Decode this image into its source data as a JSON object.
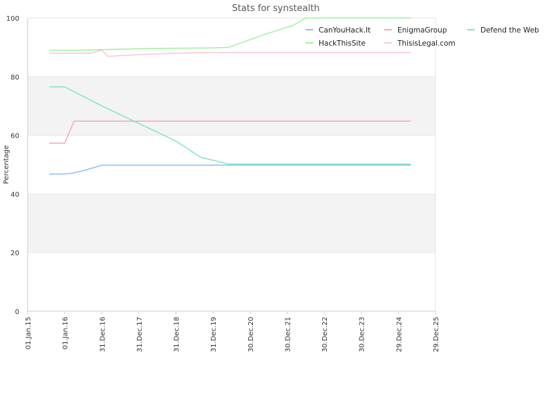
{
  "chart_data": {
    "type": "line",
    "title": "Stats for synstealth",
    "xlabel": "",
    "ylabel": "Percentage",
    "ylim": [
      0,
      100
    ],
    "yticks": [
      0,
      20,
      40,
      60,
      80,
      100
    ],
    "x_tick_labels": [
      "01.Jan.15",
      "01.Jan.16",
      "31.Dec.16",
      "31.Dec.17",
      "31.Dec.18",
      "31.Dec.19",
      "30.Dec.20",
      "30.Dec.21",
      "30.Dec.22",
      "30.Dec.23",
      "29.Dec.24",
      "29.Dec.25"
    ],
    "xlim": [
      "2015-01-01",
      "2025-12-29"
    ],
    "grid": {
      "horizontal": true,
      "alternating_bands": true,
      "band_color": "#f3f3f3"
    },
    "legend_position": "top-right",
    "series": [
      {
        "name": "CanYouHack.It",
        "color": "#8fbff3",
        "x": [
          "2015-08-01",
          "2016-01-01",
          "2016-04-01",
          "2016-08-01",
          "2017-01-01",
          "2018-01-01",
          "2019-01-01",
          "2020-01-01",
          "2021-01-01",
          "2022-01-01",
          "2023-01-01",
          "2024-01-01",
          "2025-05-01"
        ],
        "values": [
          46.8,
          46.8,
          47.2,
          48.2,
          49.8,
          49.8,
          49.8,
          49.8,
          49.8,
          49.8,
          49.8,
          49.8,
          49.8
        ]
      },
      {
        "name": "EnigmaGroup",
        "color": "#f4a6bd",
        "x": [
          "2015-08-01",
          "2016-01-01",
          "2016-04-01",
          "2017-01-01",
          "2018-01-01",
          "2019-01-01",
          "2020-01-01",
          "2021-01-01",
          "2022-01-01",
          "2023-01-01",
          "2024-01-01",
          "2025-05-01"
        ],
        "values": [
          57.3,
          57.3,
          64.8,
          64.8,
          64.8,
          64.8,
          64.8,
          64.8,
          64.8,
          64.8,
          64.8,
          64.8
        ]
      },
      {
        "name": "Defend the Web",
        "color": "#7fe8c0",
        "x": [
          "2015-08-01",
          "2016-01-01",
          "2017-01-01",
          "2018-01-01",
          "2019-01-01",
          "2019-09-01",
          "2020-06-01",
          "2021-01-01",
          "2022-01-01",
          "2023-01-01",
          "2024-01-01",
          "2025-05-01"
        ],
        "values": [
          76.5,
          76.5,
          70.0,
          64.0,
          58.0,
          52.5,
          50.2,
          50.2,
          50.2,
          50.2,
          50.2,
          50.2
        ]
      },
      {
        "name": "HackThisSite",
        "color": "#9df29d",
        "x": [
          "2015-08-01",
          "2016-06-01",
          "2017-01-01",
          "2018-01-01",
          "2019-01-01",
          "2020-01-01",
          "2020-06-01",
          "2021-06-01",
          "2022-03-01",
          "2022-07-01",
          "2023-01-01",
          "2024-01-01",
          "2025-05-01"
        ],
        "values": [
          89.0,
          89.0,
          89.2,
          89.5,
          89.7,
          89.8,
          90.0,
          94.5,
          97.5,
          100.0,
          100.0,
          100.0,
          100.0
        ]
      },
      {
        "name": "ThisisLegal.com",
        "color": "#f5c8d0",
        "x": [
          "2015-08-01",
          "2016-09-01",
          "2017-01-01",
          "2017-03-01",
          "2018-01-01",
          "2019-01-01",
          "2020-01-01",
          "2021-01-01",
          "2022-01-01",
          "2023-01-01",
          "2024-01-01",
          "2025-05-01"
        ],
        "values": [
          88.0,
          88.0,
          89.0,
          86.9,
          87.5,
          88.0,
          88.2,
          88.2,
          88.2,
          88.2,
          88.2,
          88.2
        ]
      }
    ]
  }
}
